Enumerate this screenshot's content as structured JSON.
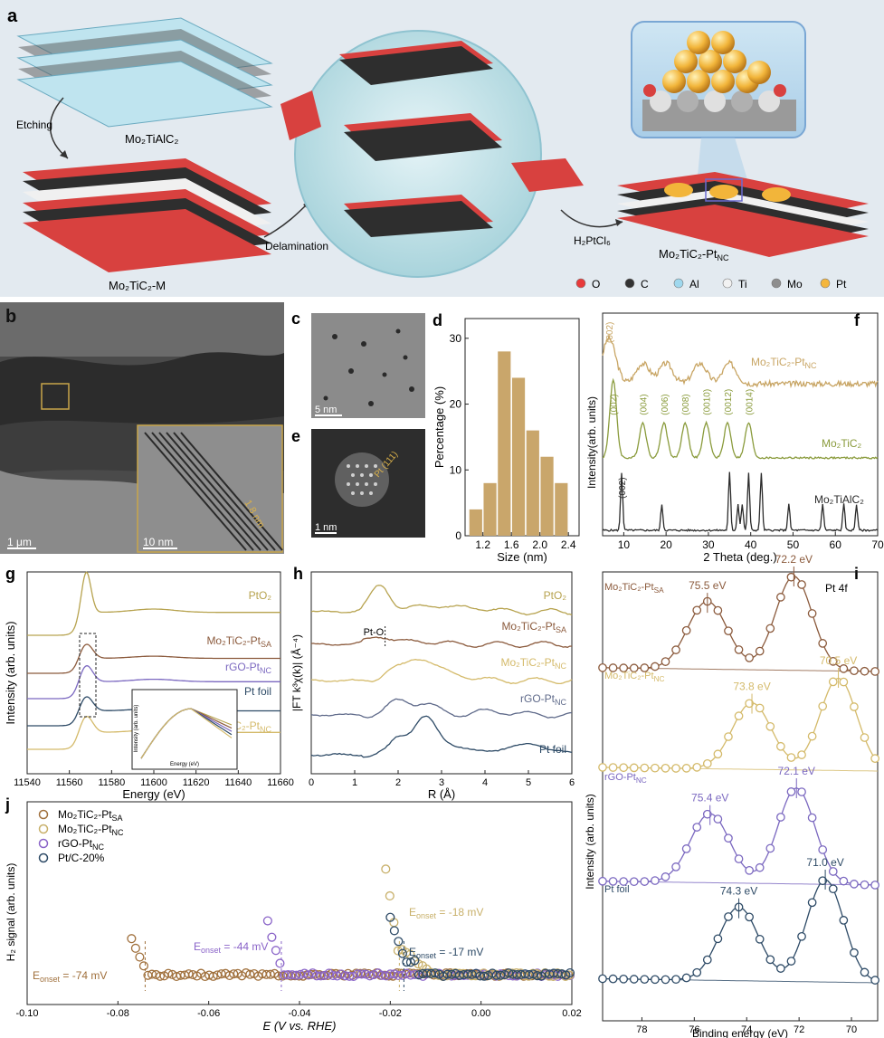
{
  "panel_a": {
    "label": "a",
    "mo2tialc2": "Mo₂TiAlC₂",
    "etching": "Etching",
    "mo2tic2_m": "Mo₂TiC₂-M",
    "delamination": "Delamination",
    "h2ptcl6": "H₂PtCl₆",
    "product": "Mo₂TiC₂-Pt",
    "product_sub": "NC",
    "legend": [
      {
        "label": "O",
        "color": "#e83a3a"
      },
      {
        "label": "C",
        "color": "#333333"
      },
      {
        "label": "Al",
        "color": "#9fd8ee"
      },
      {
        "label": "Ti",
        "color": "#f2f2f2"
      },
      {
        "label": "Mo",
        "color": "#8e8e8e"
      },
      {
        "label": "Pt",
        "color": "#f4b63d"
      }
    ]
  },
  "panel_b": {
    "label": "b",
    "scale1": "1 μm",
    "scale2": "10 nm",
    "spacing": "1.8 nm"
  },
  "panel_c": {
    "label": "c",
    "scale": "5 nm"
  },
  "panel_e": {
    "label": "e",
    "scale": "1 nm",
    "plane": "Pt (111)"
  },
  "chart_data": [
    {
      "panel": "d",
      "type": "bar",
      "xlabel": "Size (nm)",
      "ylabel": "Percentage (%)",
      "x": [
        1.1,
        1.3,
        1.5,
        1.7,
        1.9,
        2.1,
        2.3
      ],
      "values": [
        4,
        8,
        28,
        24,
        16,
        12,
        8
      ],
      "xticks": [
        1.2,
        1.6,
        2.0,
        2.4
      ],
      "yticks": [
        0,
        10,
        20,
        30
      ],
      "xlim": [
        0.95,
        2.55
      ],
      "ylim": [
        0,
        33
      ],
      "color": "#c9a66b"
    },
    {
      "panel": "f",
      "type": "line",
      "xlabel": "2 Theta (deg.)",
      "ylabel": "Intensity(arb. units)",
      "xticks": [
        10,
        20,
        30,
        40,
        50,
        60,
        70
      ],
      "xlim": [
        5,
        70
      ],
      "series": [
        {
          "name": "Mo₂TiC₂-Pt",
          "sub": "NC",
          "color": "#c8a564",
          "peaks": [
            [
              6.5,
              "(002)"
            ],
            [
              14.5,
              ""
            ],
            [
              20,
              ""
            ],
            [
              28,
              ""
            ],
            [
              35,
              ""
            ]
          ]
        },
        {
          "name": "Mo₂TiC₂",
          "color": "#8a9b3c",
          "peaks": [
            [
              7.5,
              "(002)"
            ],
            [
              14.5,
              "(004)"
            ],
            [
              19.5,
              "(006)"
            ],
            [
              24.5,
              "(008)"
            ],
            [
              29.5,
              "(0010)"
            ],
            [
              34.5,
              "(0012)"
            ],
            [
              39.5,
              "(0014)"
            ]
          ]
        },
        {
          "name": "Mo₂TiAlC₂",
          "color": "#2b2b2b",
          "peaks": [
            [
              9.5,
              "(002)"
            ],
            [
              19,
              ""
            ],
            [
              35,
              ""
            ],
            [
              37,
              ""
            ],
            [
              38,
              ""
            ],
            [
              39.5,
              ""
            ],
            [
              42.5,
              ""
            ],
            [
              49,
              ""
            ],
            [
              57,
              ""
            ],
            [
              62,
              ""
            ],
            [
              65,
              ""
            ]
          ]
        }
      ]
    },
    {
      "panel": "g",
      "type": "line",
      "xlabel": "Energy (eV)",
      "ylabel": "Intensity (arb. units)",
      "xticks": [
        11540,
        11560,
        11580,
        11600,
        11620,
        11640,
        11660
      ],
      "xlim": [
        11540,
        11660
      ],
      "series": [
        {
          "name": "PtO₂",
          "color": "#b7a34f"
        },
        {
          "name": "Mo₂TiC₂-Pt",
          "sub": "SA",
          "color": "#8b5a3c"
        },
        {
          "name": "rGO-Pt",
          "sub": "NC",
          "color": "#7b68c0"
        },
        {
          "name": "Pt foil",
          "color": "#2d4a66"
        },
        {
          "name": "Mo₂TiC₂-Pt",
          "sub": "NC",
          "color": "#d4ba6a"
        }
      ],
      "inset": {
        "xlabel": "Energy (eV)",
        "ylabel": "Intensity (arb. units)"
      }
    },
    {
      "panel": "h",
      "type": "line",
      "xlabel": "R (Å)",
      "ylabel": "|FT k³χ(k)| (Å⁻⁴)",
      "xticks": [
        0,
        1,
        2,
        3,
        4,
        5,
        6
      ],
      "xlim": [
        0,
        6
      ],
      "annotation": "Pt-O",
      "series": [
        {
          "name": "PtO₂",
          "color": "#b7a34f"
        },
        {
          "name": "Mo₂TiC₂-Pt",
          "sub": "SA",
          "color": "#8b5a3c"
        },
        {
          "name": "Mo₂TiC₂-Pt",
          "sub": "NC",
          "color": "#d4ba6a"
        },
        {
          "name": "rGO-Pt",
          "sub": "NC",
          "color": "#5f6a8a"
        },
        {
          "name": "Pt foil",
          "color": "#2d4a66"
        }
      ]
    },
    {
      "panel": "i",
      "type": "scatter",
      "title": "Pt 4f",
      "xlabel": "Binding energy (eV)",
      "ylabel": "Intensity (arb. units)",
      "xticks": [
        78,
        76,
        74,
        72,
        70
      ],
      "xlim": [
        79.5,
        69
      ],
      "series": [
        {
          "name": "Mo₂TiC₂-Pt",
          "sub": "SA",
          "color": "#8b5a3c",
          "peaks": [
            75.5,
            72.2
          ],
          "labels": [
            "75.5 eV",
            "72.2 eV"
          ]
        },
        {
          "name": "Mo₂TiC₂-Pt",
          "sub": "NC",
          "color": "#d4ba6a",
          "peaks": [
            73.8,
            70.5
          ],
          "labels": [
            "73.8 eV",
            "70.5 eV"
          ]
        },
        {
          "name": "rGO-Pt",
          "sub": "NC",
          "color": "#7b68c0",
          "peaks": [
            75.4,
            72.1
          ],
          "labels": [
            "75.4 eV",
            "72.1 eV"
          ]
        },
        {
          "name": "Pt foil",
          "color": "#2d4a66",
          "peaks": [
            74.3,
            71.0
          ],
          "labels": [
            "74.3 eV",
            "71.0 eV"
          ]
        }
      ]
    },
    {
      "panel": "j",
      "type": "scatter",
      "xlabel": "E (V vs. RHE)",
      "ylabel": "H₂ signal (arb. units)",
      "xticks": [
        -0.1,
        -0.08,
        -0.06,
        -0.04,
        -0.02,
        0.0,
        0.02
      ],
      "xlim": [
        -0.1,
        0.02
      ],
      "series": [
        {
          "name": "Mo₂TiC₂-Pt",
          "sub": "SA",
          "color": "#a0703c",
          "onset": -0.074,
          "onset_label": "E",
          "onset_sub": "onset",
          "onset_value": " = -74 mV"
        },
        {
          "name": "Mo₂TiC₂-Pt",
          "sub": "NC",
          "color": "#c8b06a",
          "onset": -0.018,
          "onset_label": "E",
          "onset_sub": "onset",
          "onset_value": " = -18 mV"
        },
        {
          "name": "rGO-Pt",
          "sub": "NC",
          "color": "#8a64c8",
          "onset": -0.044,
          "onset_label": "E",
          "onset_sub": "onset",
          "onset_value": " = -44 mV"
        },
        {
          "name": "Pt/C-20%",
          "color": "#2d4a66",
          "onset": -0.017,
          "onset_label": "E",
          "onset_sub": "onset",
          "onset_value": " = -17 mV"
        }
      ]
    }
  ],
  "labels": {
    "g": "g",
    "h": "h",
    "i": "i",
    "j": "j",
    "d": "d",
    "f": "f"
  }
}
